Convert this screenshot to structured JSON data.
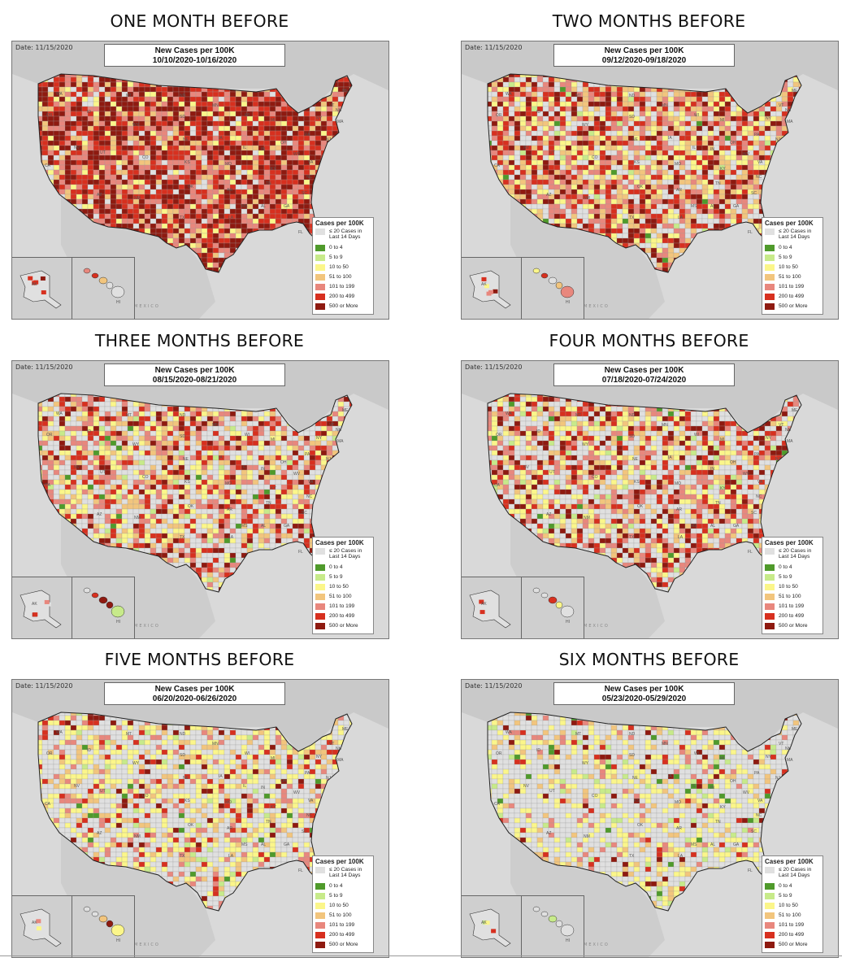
{
  "panels": [
    {
      "title": "ONE MONTH BEFORE",
      "date": "Date: 11/15/2020",
      "header_line1": "New Cases per 100K",
      "header_line2": "10/10/2020-10/16/2020",
      "level_weights": {
        "le20": 6,
        "0-4": 0,
        "5-9": 0,
        "10-50": 6,
        "51-100": 10,
        "101-199": 18,
        "200-499": 26,
        "500+": 34
      }
    },
    {
      "title": "TWO MONTHS BEFORE",
      "date": "Date: 11/15/2020",
      "header_line1": "New Cases per 100K",
      "header_line2": "09/12/2020-09/18/2020",
      "level_weights": {
        "le20": 22,
        "0-4": 1,
        "5-9": 1,
        "10-50": 14,
        "51-100": 16,
        "101-199": 16,
        "200-499": 18,
        "500+": 12
      }
    },
    {
      "title": "THREE MONTHS BEFORE",
      "date": "Date: 11/15/2020",
      "header_line1": "New Cases per 100K",
      "header_line2": "08/15/2020-08/21/2020",
      "level_weights": {
        "le20": 34,
        "0-4": 1,
        "5-9": 2,
        "10-50": 14,
        "51-100": 14,
        "101-199": 14,
        "200-499": 13,
        "500+": 8
      }
    },
    {
      "title": "FOUR MONTHS BEFORE",
      "date": "Date: 11/15/2020",
      "header_line1": "New Cases per 100K",
      "header_line2": "07/18/2020-07/24/2020",
      "level_weights": {
        "le20": 34,
        "0-4": 1,
        "5-9": 2,
        "10-50": 14,
        "51-100": 12,
        "101-199": 14,
        "200-499": 13,
        "500+": 10
      }
    },
    {
      "title": "FIVE MONTHS BEFORE",
      "date": "Date: 11/15/2020",
      "header_line1": "New Cases per 100K",
      "header_line2": "06/20/2020-06/26/2020",
      "level_weights": {
        "le20": 48,
        "0-4": 1,
        "5-9": 3,
        "10-50": 20,
        "51-100": 10,
        "101-199": 8,
        "200-499": 6,
        "500+": 4
      }
    },
    {
      "title": "SIX MONTHS BEFORE",
      "date": "Date: 11/15/2020",
      "header_line1": "New Cases per 100K",
      "header_line2": "05/23/2020-05/29/2020",
      "level_weights": {
        "le20": 58,
        "0-4": 2,
        "5-9": 4,
        "10-50": 18,
        "51-100": 8,
        "101-199": 5,
        "200-499": 3,
        "500+": 2
      }
    }
  ],
  "legend": {
    "title": "Cases per 100K",
    "items": [
      {
        "label": "≤ 20 Cases in Last 14 Days",
        "color": "#e0e0e0"
      },
      {
        "label": "0 to 4",
        "color": "#4f9a2b"
      },
      {
        "label": "5 to 9",
        "color": "#c7ea8a"
      },
      {
        "label": "10 to 50",
        "color": "#fbf68a"
      },
      {
        "label": "51 to 100",
        "color": "#f2c57d"
      },
      {
        "label": "101 to 199",
        "color": "#e8877d"
      },
      {
        "label": "200 to 499",
        "color": "#d7301f"
      },
      {
        "label": "500 or More",
        "color": "#8e1a10"
      }
    ]
  },
  "map_labels": {
    "mexico": "MEXICO",
    "states": [
      "WA",
      "OR",
      "CA",
      "NV",
      "ID",
      "MT",
      "WY",
      "UT",
      "CO",
      "AZ",
      "NM",
      "ND",
      "SD",
      "NE",
      "KS",
      "OK",
      "TX",
      "MN",
      "IA",
      "MO",
      "AR",
      "LA",
      "WI",
      "IL",
      "MI",
      "IN",
      "OH",
      "KY",
      "TN",
      "MS",
      "AL",
      "GA",
      "FL",
      "SC",
      "NC",
      "VA",
      "WV",
      "PA",
      "NY",
      "ME",
      "VT",
      "NH",
      "MA",
      "NJ",
      "AK",
      "HI"
    ]
  }
}
